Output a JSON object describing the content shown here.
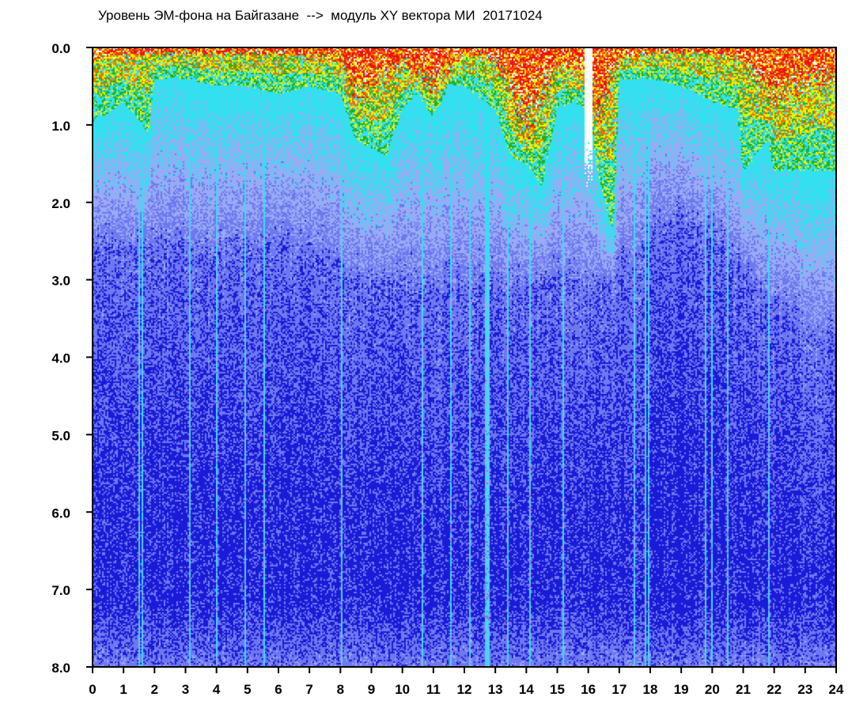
{
  "chart_data": {
    "type": "heatmap",
    "title": "Уровень ЭМ-фона на Байгазане  -->  модуль XY вектора МИ  20171024",
    "xlabel": "",
    "ylabel": "",
    "x_ticks": [
      "0",
      "1",
      "2",
      "3",
      "4",
      "5",
      "6",
      "7",
      "8",
      "9",
      "10",
      "11",
      "12",
      "13",
      "14",
      "15",
      "16",
      "17",
      "18",
      "19",
      "20",
      "21",
      "22",
      "23",
      "24"
    ],
    "y_ticks": [
      "0.0",
      "1.0",
      "2.0",
      "3.0",
      "4.0",
      "5.0",
      "6.0",
      "7.0",
      "8.0"
    ],
    "xlim": [
      0,
      24
    ],
    "ylim": [
      0,
      8
    ],
    "y_axis_inverted": true,
    "grid": false,
    "legend": "none",
    "color_scale": [
      "#1a1ad8",
      "#6e78f0",
      "#9aaaf5",
      "#33e0f0",
      "#20b020",
      "#f0f000",
      "#f07000",
      "#f01010"
    ],
    "gap_x_range": [
      15.9,
      16.15
    ],
    "upper_boundary": {
      "x": [
        0,
        1,
        1.8,
        2,
        3,
        4,
        5,
        6,
        7,
        8,
        8.5,
        9,
        9.5,
        10,
        10.5,
        11,
        11.5,
        12,
        13,
        13.5,
        14,
        14.5,
        15,
        15.5,
        16,
        16.3,
        16.8,
        17,
        18,
        19,
        20,
        20.8,
        21,
        21.8,
        22,
        23,
        24
      ],
      "y": [
        1.0,
        0.7,
        1.1,
        0.4,
        0.4,
        0.5,
        0.5,
        0.6,
        0.5,
        0.6,
        1.2,
        1.3,
        1.4,
        0.8,
        0.6,
        0.9,
        0.5,
        0.5,
        0.8,
        1.4,
        1.5,
        1.8,
        0.8,
        0.7,
        0.8,
        1.6,
        2.4,
        0.4,
        0.4,
        0.5,
        0.7,
        0.8,
        1.6,
        1.2,
        1.6,
        1.6,
        1.6
      ]
    },
    "hot_boundary": {
      "x": [
        0,
        2,
        4,
        6,
        8,
        8.5,
        9,
        10,
        11,
        12,
        13,
        14,
        15,
        16,
        16.3,
        17,
        18,
        20,
        21,
        22,
        23,
        24
      ],
      "y": [
        0.2,
        0.1,
        0.1,
        0.1,
        0.2,
        0.7,
        0.6,
        0.3,
        0.6,
        0.1,
        0.2,
        1.2,
        0.3,
        0.4,
        1.2,
        0.2,
        0.1,
        0.1,
        0.2,
        0.8,
        0.6,
        0.5
      ]
    },
    "dark_region": {
      "x": [
        0,
        1,
        2,
        3,
        4,
        5,
        6,
        7,
        8,
        9,
        10,
        11,
        12,
        13,
        14,
        15,
        16,
        17,
        18,
        19,
        20,
        21,
        22,
        23,
        24
      ],
      "y": [
        2.6,
        2.7,
        2.7,
        2.8,
        2.9,
        2.8,
        2.6,
        2.8,
        3.0,
        3.2,
        3.3,
        3.3,
        3.2,
        3.3,
        3.2,
        3.1,
        3.3,
        3.0,
        2.6,
        2.4,
        2.6,
        3.0,
        3.5,
        3.8,
        4.0
      ]
    }
  }
}
